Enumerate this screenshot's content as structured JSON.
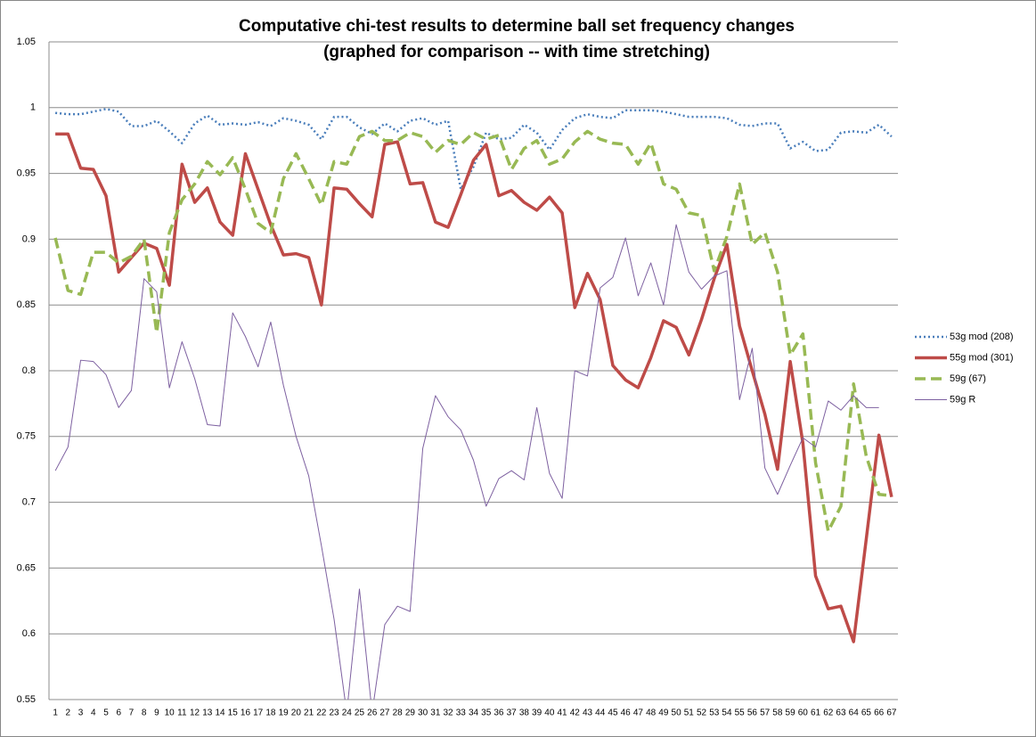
{
  "chart_data": {
    "type": "line",
    "title": "Computative chi-test results to determine ball set frequency changes",
    "subtitle": "(graphed for comparison -- with time stretching)",
    "categories": [
      1,
      2,
      3,
      4,
      5,
      6,
      7,
      8,
      9,
      10,
      11,
      12,
      13,
      14,
      15,
      16,
      17,
      18,
      19,
      20,
      21,
      22,
      23,
      24,
      25,
      26,
      27,
      28,
      29,
      30,
      31,
      32,
      33,
      34,
      35,
      36,
      37,
      38,
      39,
      40,
      41,
      42,
      43,
      44,
      45,
      46,
      47,
      48,
      49,
      50,
      51,
      52,
      53,
      54,
      55,
      56,
      57,
      58,
      59,
      60,
      61,
      62,
      63,
      64,
      65,
      66,
      67
    ],
    "ylim": [
      0.55,
      1.05
    ],
    "yticks": [
      0.55,
      0.6,
      0.65,
      0.7,
      0.75,
      0.8,
      0.85,
      0.9,
      0.95,
      1,
      1.05
    ],
    "grid": true,
    "legend": "right",
    "series": [
      {
        "name": "53g mod (208)",
        "color": "#4a7ebb",
        "dash": "dotted",
        "line_width": 2.5,
        "values": [
          0.996,
          0.995,
          0.995,
          0.997,
          0.999,
          0.997,
          0.986,
          0.986,
          0.99,
          0.982,
          0.973,
          0.988,
          0.994,
          0.987,
          0.988,
          0.987,
          0.989,
          0.986,
          0.992,
          0.99,
          0.987,
          0.976,
          0.993,
          0.993,
          0.985,
          0.98,
          0.988,
          0.982,
          0.99,
          0.992,
          0.987,
          0.99,
          0.938,
          0.955,
          0.981,
          0.976,
          0.977,
          0.987,
          0.981,
          0.968,
          0.983,
          0.992,
          0.995,
          0.993,
          0.992,
          0.998,
          0.998,
          0.998,
          0.997,
          0.995,
          0.993,
          0.993,
          0.993,
          0.992,
          0.987,
          0.986,
          0.988,
          0.988,
          0.969,
          0.974,
          0.967,
          0.968,
          0.981,
          0.982,
          0.981,
          0.987,
          0.978
        ]
      },
      {
        "name": "55g mod (301)",
        "color": "#be4b48",
        "dash": "solid",
        "line_width": 3.5,
        "values": [
          0.98,
          0.98,
          0.954,
          0.953,
          0.933,
          0.875,
          0.886,
          0.897,
          0.893,
          0.865,
          0.957,
          0.928,
          0.939,
          0.913,
          0.903,
          0.965,
          0.938,
          0.911,
          0.888,
          0.889,
          0.886,
          0.85,
          0.939,
          0.938,
          0.927,
          0.917,
          0.972,
          0.974,
          0.942,
          0.943,
          0.913,
          0.909,
          0.934,
          0.96,
          0.972,
          0.933,
          0.937,
          0.928,
          0.922,
          0.932,
          0.92,
          0.848,
          0.874,
          0.854,
          0.804,
          0.793,
          0.787,
          0.81,
          0.838,
          0.833,
          0.812,
          0.839,
          0.87,
          0.896,
          0.834,
          0.8,
          0.767,
          0.725,
          0.807,
          0.745,
          0.644,
          0.619,
          0.621,
          0.594,
          0.672,
          0.751,
          0.704
        ]
      },
      {
        "name": "59g (67)",
        "color": "#98b954",
        "dash": "dashed",
        "line_width": 3.5,
        "values": [
          0.901,
          0.861,
          0.858,
          0.89,
          0.89,
          0.882,
          0.887,
          0.9,
          0.829,
          0.905,
          0.93,
          0.942,
          0.959,
          0.949,
          0.962,
          0.938,
          0.912,
          0.905,
          0.946,
          0.965,
          0.946,
          0.926,
          0.959,
          0.957,
          0.978,
          0.982,
          0.975,
          0.975,
          0.981,
          0.978,
          0.966,
          0.975,
          0.972,
          0.981,
          0.976,
          0.979,
          0.953,
          0.969,
          0.975,
          0.957,
          0.961,
          0.974,
          0.982,
          0.976,
          0.973,
          0.972,
          0.957,
          0.973,
          0.942,
          0.938,
          0.92,
          0.918,
          0.876,
          0.902,
          0.942,
          0.896,
          0.905,
          0.875,
          0.812,
          0.828,
          0.73,
          0.678,
          0.697,
          0.79,
          0.735,
          0.706,
          0.705
        ]
      },
      {
        "name": "59g R",
        "color": "#7d60a0",
        "dash": "solid",
        "line_width": 1,
        "values": [
          0.724,
          0.742,
          0.808,
          0.807,
          0.797,
          0.772,
          0.785,
          0.87,
          0.86,
          0.787,
          0.822,
          0.794,
          0.759,
          0.758,
          0.844,
          0.826,
          0.803,
          0.837,
          0.789,
          0.75,
          0.72,
          0.667,
          0.611,
          0.54,
          0.634,
          0.54,
          0.607,
          0.621,
          0.617,
          0.741,
          0.781,
          0.765,
          0.755,
          0.732,
          0.697,
          0.718,
          0.724,
          0.717,
          0.772,
          0.722,
          0.703,
          0.8,
          0.796,
          0.863,
          0.871,
          0.901,
          0.857,
          0.882,
          0.85,
          0.911,
          0.875,
          0.862,
          0.872,
          0.876,
          0.778,
          0.817,
          0.726,
          0.706,
          0.728,
          0.749,
          0.742,
          0.777,
          0.77,
          0.781,
          0.772,
          0.772,
          null
        ]
      }
    ]
  }
}
